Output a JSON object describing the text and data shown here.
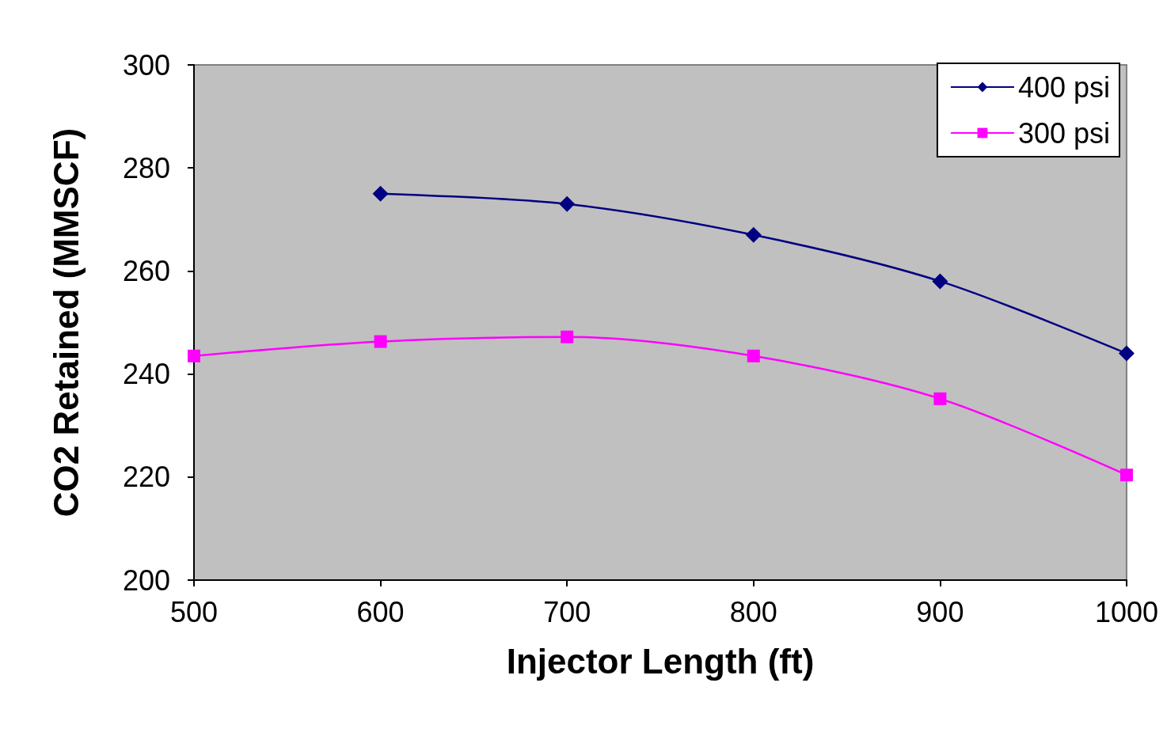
{
  "chart_data": {
    "type": "line",
    "xlabel": "Injector Length (ft)",
    "ylabel": "CO2 Retained (MMSCF)",
    "xlim": [
      500,
      1000
    ],
    "xticks": [
      500,
      600,
      700,
      800,
      900,
      1000
    ],
    "ylim": [
      200,
      300
    ],
    "yticks": [
      200,
      220,
      240,
      260,
      280,
      300
    ],
    "grid": false,
    "legend": "top right",
    "series": [
      {
        "name": "400 psi",
        "color": "#000080",
        "marker": "diamond",
        "x": [
          600,
          700,
          800,
          900,
          1000
        ],
        "values": [
          275,
          273,
          267,
          258,
          244
        ]
      },
      {
        "name": "300 psi",
        "color": "#ff00ff",
        "marker": "square",
        "x": [
          500,
          600,
          700,
          800,
          900,
          1000
        ],
        "values": [
          243.5,
          246.3,
          247.2,
          243.5,
          235.2,
          220.4
        ]
      }
    ]
  }
}
